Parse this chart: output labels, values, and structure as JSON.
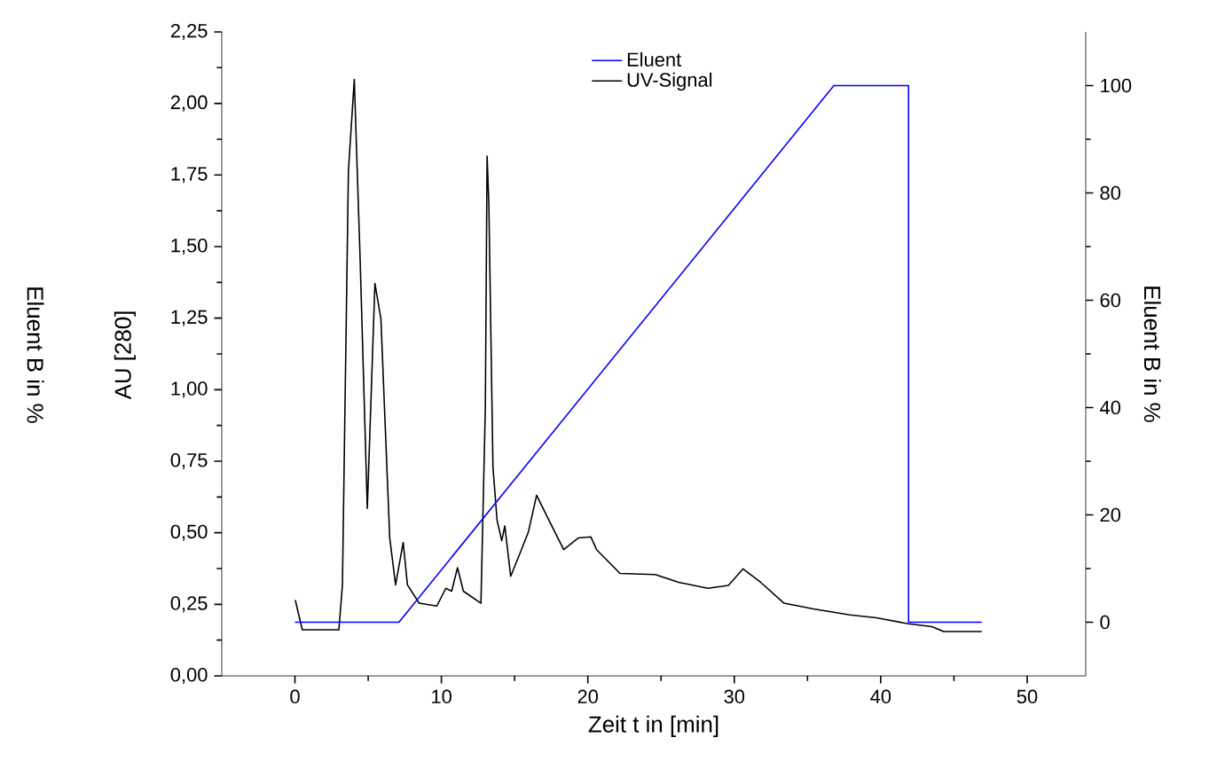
{
  "chart_data": {
    "type": "line",
    "xlabel": "Zeit t in [min]",
    "ylabel": "AU [280]",
    "y2label": "Eluent B in %",
    "annotations": [
      "Eluent B in %"
    ],
    "xlim": [
      -5,
      54
    ],
    "xticks": [
      0,
      10,
      20,
      30,
      40,
      50
    ],
    "ylim": [
      0,
      2.25
    ],
    "yticks": [
      {
        "value": 0,
        "label": "0,00"
      },
      {
        "value": 0.25,
        "label": "0,25"
      },
      {
        "value": 0.5,
        "label": "0,50"
      },
      {
        "value": 0.75,
        "label": "0,75"
      },
      {
        "value": 1,
        "label": "1,00"
      },
      {
        "value": 1.25,
        "label": "1,25"
      },
      {
        "value": 1.5,
        "label": "1,50"
      },
      {
        "value": 1.75,
        "label": "1,75"
      },
      {
        "value": 2,
        "label": "2,00"
      },
      {
        "value": 2.25,
        "label": "2,25"
      }
    ],
    "y2lim": [
      -10,
      110
    ],
    "y2ticks": [
      0,
      20,
      40,
      60,
      80,
      100
    ],
    "legend": "top",
    "grid": false,
    "marker": "none",
    "line_style": "solid",
    "series": [
      {
        "name": "Eluent",
        "color": "#0000ff",
        "axis": "y2",
        "x": [
          0,
          7.1,
          36.8,
          41.9,
          41.9,
          46.9
        ],
        "values": [
          0,
          0,
          100,
          100,
          0,
          0
        ]
      },
      {
        "name": "UV-Signal",
        "color": "#000000",
        "axis": "y",
        "x": [
          0.02,
          0.5,
          3.0,
          3.24,
          3.65,
          4.05,
          4.45,
          4.94,
          5.46,
          5.87,
          6.47,
          6.87,
          7.39,
          7.68,
          8.48,
          9.69,
          10.3,
          10.7,
          11.1,
          11.5,
          12.7,
          13.0,
          13.12,
          13.24,
          13.52,
          13.8,
          14.12,
          14.33,
          14.73,
          15.3,
          15.94,
          16.5,
          17.34,
          18.35,
          19.36,
          20.2,
          20.6,
          22.2,
          24.6,
          26.2,
          28.2,
          29.6,
          30.6,
          31.8,
          33.4,
          35.4,
          37.9,
          39.7,
          41.9,
          43.5,
          44.3,
          46.9
        ],
        "values": [
          0.265,
          0.161,
          0.161,
          0.318,
          1.764,
          2.084,
          1.454,
          0.585,
          1.371,
          1.247,
          0.482,
          0.318,
          0.466,
          0.318,
          0.254,
          0.244,
          0.306,
          0.296,
          0.378,
          0.296,
          0.254,
          0.937,
          1.816,
          1.65,
          0.73,
          0.544,
          0.472,
          0.524,
          0.348,
          0.42,
          0.503,
          0.631,
          0.544,
          0.441,
          0.482,
          0.486,
          0.441,
          0.358,
          0.354,
          0.327,
          0.306,
          0.316,
          0.374,
          0.327,
          0.254,
          0.234,
          0.213,
          0.203,
          0.182,
          0.172,
          0.155,
          0.155
        ]
      }
    ]
  }
}
